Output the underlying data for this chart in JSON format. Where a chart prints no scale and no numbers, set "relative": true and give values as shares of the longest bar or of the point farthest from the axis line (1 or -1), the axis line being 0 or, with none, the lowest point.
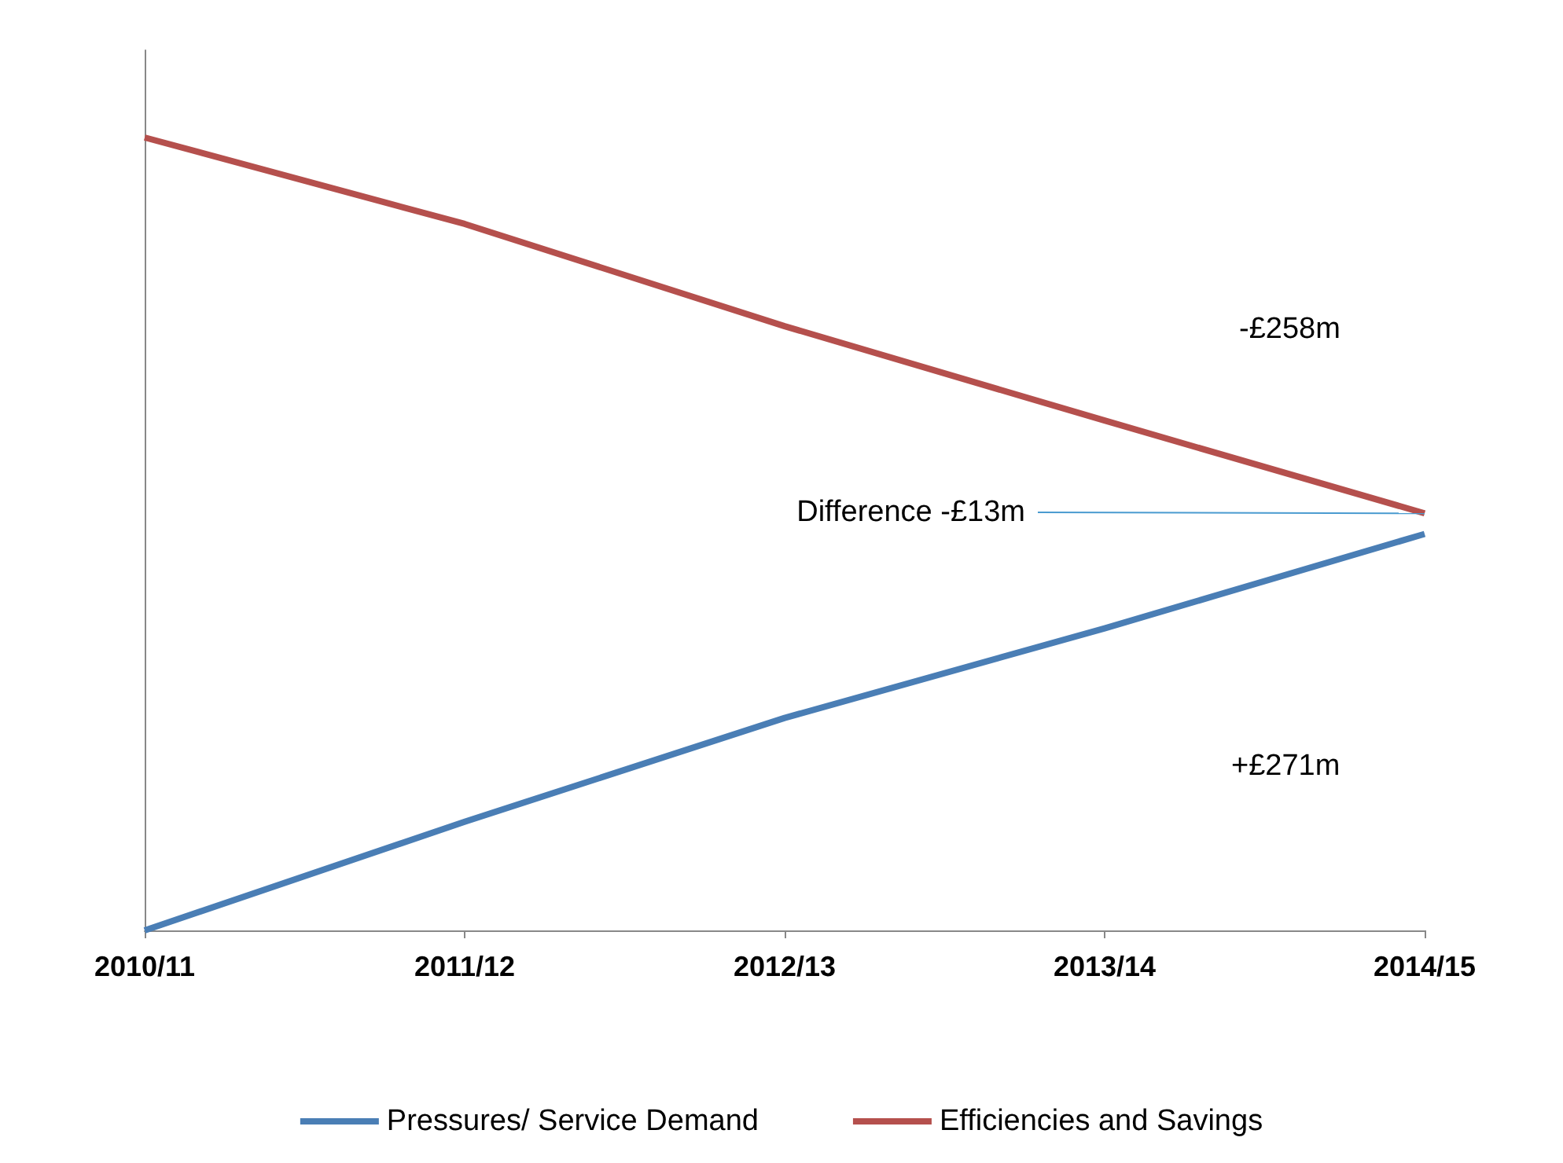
{
  "chart_data": {
    "type": "line",
    "relative": true,
    "categories": [
      "2010/11",
      "2011/12",
      "2012/13",
      "2013/14",
      "2014/15"
    ],
    "series": [
      {
        "name": "Pressures/ Service Demand",
        "color": "#4a7eb5",
        "values": [
          0,
          0.137,
          0.268,
          0.381,
          0.5
        ]
      },
      {
        "name": "Efficiencies and Savings",
        "color": "#b5504d",
        "values": [
          1,
          0.891,
          0.762,
          0.643,
          0.526
        ]
      }
    ],
    "annotations": [
      "-£258m",
      {
        "text": "Difference -£13m",
        "x": "2014/15",
        "y": 0.526
      },
      "+£271m"
    ],
    "legend": "bottom",
    "grid": false,
    "marker": "none",
    "line_style": "solid"
  }
}
